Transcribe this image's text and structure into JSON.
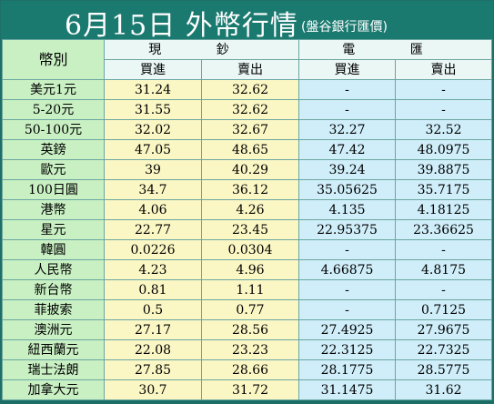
{
  "title": "6月15日 外幣行情",
  "subtitle": "(盤谷銀行匯價)",
  "headers": {
    "currency": "幣別",
    "cash": "現 鈔",
    "wire": "電 匯",
    "buy": "買進",
    "sell": "賣出"
  },
  "rows": [
    {
      "name": "美元1元",
      "cash_buy": "31.24",
      "cash_sell": "32.62",
      "wire_buy": "-",
      "wire_sell": "-"
    },
    {
      "name": "5-20元",
      "cash_buy": "31.55",
      "cash_sell": "32.62",
      "wire_buy": "-",
      "wire_sell": "-"
    },
    {
      "name": "50-100元",
      "cash_buy": "32.02",
      "cash_sell": "32.67",
      "wire_buy": "32.27",
      "wire_sell": "32.52"
    },
    {
      "name": "英鎊",
      "cash_buy": "47.05",
      "cash_sell": "48.65",
      "wire_buy": "47.42",
      "wire_sell": "48.0975"
    },
    {
      "name": "歐元",
      "cash_buy": "39",
      "cash_sell": "40.29",
      "wire_buy": "39.24",
      "wire_sell": "39.8875"
    },
    {
      "name": "100日圓",
      "cash_buy": "34.7",
      "cash_sell": "36.12",
      "wire_buy": "35.05625",
      "wire_sell": "35.7175"
    },
    {
      "name": "港幣",
      "cash_buy": "4.06",
      "cash_sell": "4.26",
      "wire_buy": "4.135",
      "wire_sell": "4.18125"
    },
    {
      "name": "星元",
      "cash_buy": "22.77",
      "cash_sell": "23.45",
      "wire_buy": "22.95375",
      "wire_sell": "23.36625"
    },
    {
      "name": "韓圓",
      "cash_buy": "0.0226",
      "cash_sell": "0.0304",
      "wire_buy": "-",
      "wire_sell": "-"
    },
    {
      "name": "人民幣",
      "cash_buy": "4.23",
      "cash_sell": "4.96",
      "wire_buy": "4.66875",
      "wire_sell": "4.8175"
    },
    {
      "name": "新台幣",
      "cash_buy": "0.81",
      "cash_sell": "1.11",
      "wire_buy": "-",
      "wire_sell": "-"
    },
    {
      "name": "菲披索",
      "cash_buy": "0.5",
      "cash_sell": "0.77",
      "wire_buy": "-",
      "wire_sell": "0.7125"
    },
    {
      "name": "澳洲元",
      "cash_buy": "27.17",
      "cash_sell": "28.56",
      "wire_buy": "27.4925",
      "wire_sell": "27.9675"
    },
    {
      "name": "紐西蘭元",
      "cash_buy": "22.08",
      "cash_sell": "23.23",
      "wire_buy": "22.3125",
      "wire_sell": "22.7325"
    },
    {
      "name": "瑞士法朗",
      "cash_buy": "27.85",
      "cash_sell": "28.66",
      "wire_buy": "28.1775",
      "wire_sell": "28.5775"
    },
    {
      "name": "加拿大元",
      "cash_buy": "30.7",
      "cash_sell": "31.72",
      "wire_buy": "31.1475",
      "wire_sell": "31.62"
    }
  ]
}
